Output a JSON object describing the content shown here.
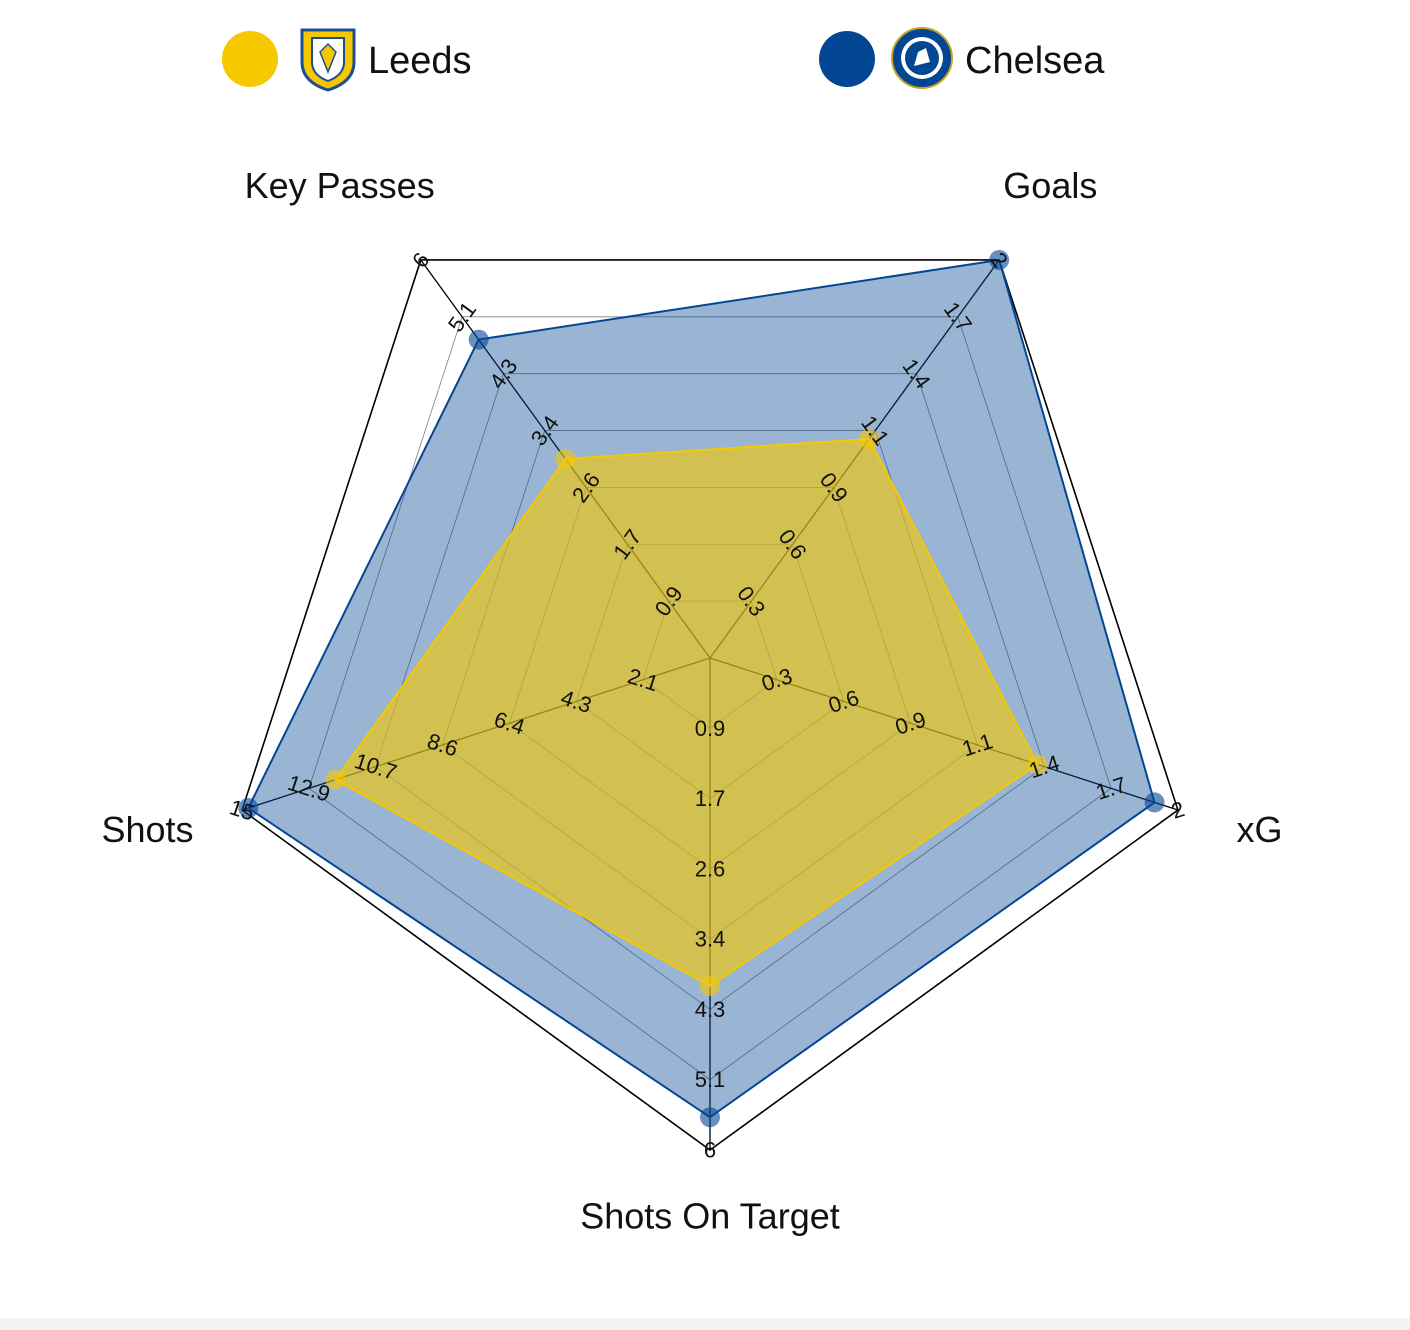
{
  "legend": {
    "team_a": {
      "name": "Leeds",
      "color": "#f5c800",
      "badge_icon": "leeds-badge-icon"
    },
    "team_b": {
      "name": "Chelsea",
      "color": "#034694",
      "badge_icon": "chelsea-badge-icon"
    }
  },
  "chart_data": {
    "type": "radar",
    "axes": [
      "Goals",
      "xG",
      "Shots On Target",
      "Shots",
      "Key Passes"
    ],
    "ranges": [
      [
        0,
        2
      ],
      [
        0,
        2
      ],
      [
        0,
        6
      ],
      [
        0,
        15
      ],
      [
        0,
        6
      ]
    ],
    "tick_labels": [
      [
        "0.3",
        "0.6",
        "0.9",
        "1.1",
        "1.4",
        "1.7",
        "2"
      ],
      [
        "0.3",
        "0.6",
        "0.9",
        "1.1",
        "1.4",
        "1.7",
        "2"
      ],
      [
        "0.9",
        "1.7",
        "2.6",
        "3.4",
        "4.3",
        "5.1",
        "6"
      ],
      [
        "2.1",
        "4.3",
        "6.4",
        "8.6",
        "10.7",
        "12.9",
        "15"
      ],
      [
        "0.9",
        "1.7",
        "2.6",
        "3.4",
        "4.3",
        "5.1",
        "6"
      ]
    ],
    "series": [
      {
        "name": "Leeds",
        "values": [
          1.1,
          1.4,
          4.0,
          12.0,
          3.0
        ],
        "color": "#f5c800"
      },
      {
        "name": "Chelsea",
        "values": [
          2.0,
          1.9,
          5.6,
          14.8,
          4.8
        ],
        "color": "#034694"
      }
    ],
    "grid": true,
    "legend_position": "top"
  }
}
